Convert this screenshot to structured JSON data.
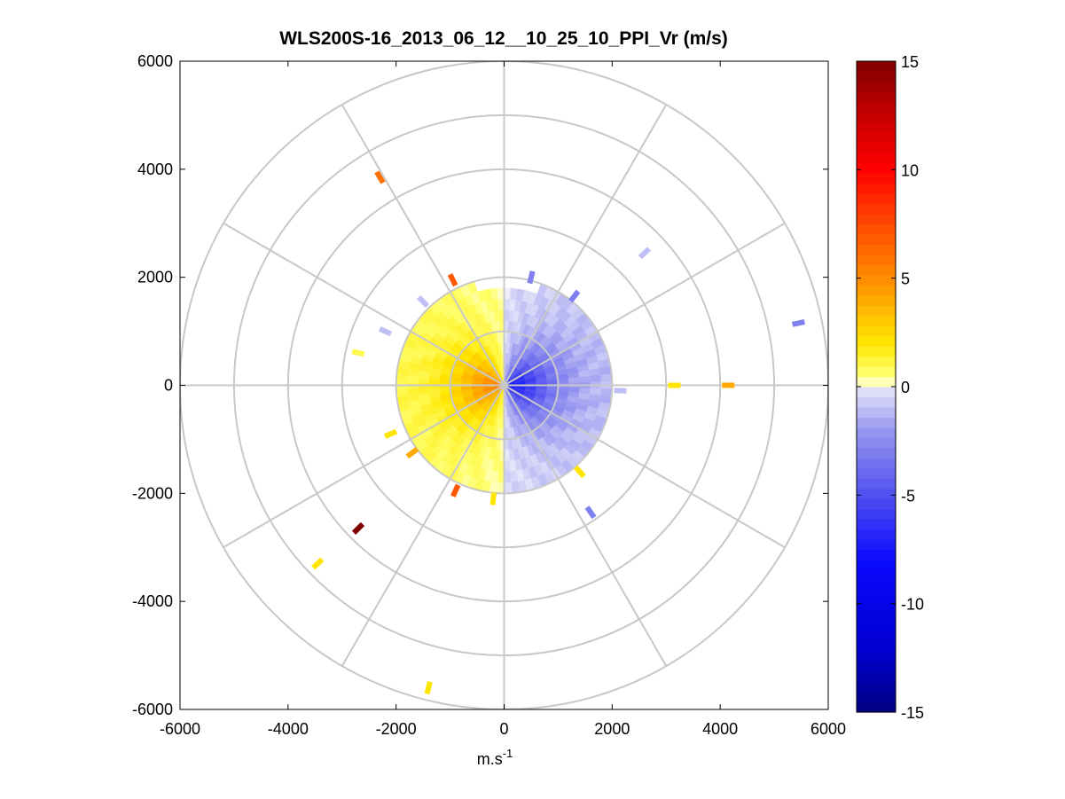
{
  "chart_data": {
    "type": "heatmap",
    "subtype": "polar-ppi",
    "title": "WLS200S-16_2013_06_12__10_25_10_PPI_Vr (m/s)",
    "xlabel_base": "m.s",
    "xlabel_exp": "-1",
    "ylabel": "",
    "xlim": [
      -6000,
      6000
    ],
    "ylim": [
      -6000,
      6000
    ],
    "xticks": [
      -6000,
      -4000,
      -2000,
      0,
      2000,
      4000,
      6000
    ],
    "yticks": [
      -6000,
      -4000,
      -2000,
      0,
      2000,
      4000,
      6000
    ],
    "xtick_labels": [
      "-6000",
      "-4000",
      "-2000",
      "0",
      "2000",
      "4000",
      "6000"
    ],
    "ytick_labels": [
      "-6000",
      "-4000",
      "-2000",
      "0",
      "2000",
      "4000",
      "6000"
    ],
    "range_rings": [
      1000,
      2000,
      3000,
      4000,
      5000,
      6000
    ],
    "spoke_angles_deg": [
      0,
      30,
      60,
      90,
      120,
      150,
      180,
      210,
      240,
      270,
      300,
      330
    ],
    "colorbar": {
      "min": -15,
      "max": 15,
      "ticks": [
        15,
        10,
        5,
        0,
        -5,
        -10,
        -15
      ],
      "tick_labels": [
        "15",
        "10",
        "5",
        "0",
        "-5",
        "-10",
        "-15"
      ]
    },
    "field": {
      "description": "radial velocity, main echo region out to ~2000 m range",
      "max_range": 2000,
      "gap_azimuth_deg": [
        -2,
        2
      ],
      "positive_sector_center_deg": 180,
      "peak_positive": 5,
      "peak_negative": -7
    },
    "scatter_gates": [
      {
        "x": -2300,
        "y": 3850,
        "v": 6
      },
      {
        "x": 2600,
        "y": 2450,
        "v": -1
      },
      {
        "x": 5450,
        "y": 1150,
        "v": -3
      },
      {
        "x": 3150,
        "y": 0,
        "v": 2
      },
      {
        "x": 4150,
        "y": 0,
        "v": 4
      },
      {
        "x": -2700,
        "y": -2650,
        "v": 15
      },
      {
        "x": -3450,
        "y": -3300,
        "v": 2
      },
      {
        "x": -1400,
        "y": -5600,
        "v": 2
      },
      {
        "x": 1600,
        "y": -2350,
        "v": -3
      },
      {
        "x": -2700,
        "y": 600,
        "v": 1
      },
      {
        "x": -2100,
        "y": -900,
        "v": 2
      },
      {
        "x": -1700,
        "y": -1250,
        "v": 4
      },
      {
        "x": -900,
        "y": -1950,
        "v": 7
      },
      {
        "x": -200,
        "y": -2100,
        "v": 2
      },
      {
        "x": 500,
        "y": 2000,
        "v": -3
      },
      {
        "x": 1300,
        "y": 1650,
        "v": -3
      },
      {
        "x": -950,
        "y": 1950,
        "v": 7
      },
      {
        "x": -2200,
        "y": 1000,
        "v": -1
      },
      {
        "x": -1500,
        "y": 1550,
        "v": -1
      },
      {
        "x": 1400,
        "y": -1600,
        "v": 2
      },
      {
        "x": 2150,
        "y": -100,
        "v": -1
      }
    ]
  }
}
